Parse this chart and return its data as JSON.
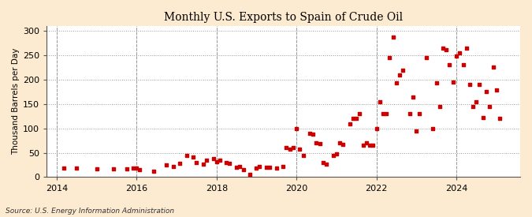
{
  "title": "Monthly U.S. Exports to Spain of Crude Oil",
  "ylabel": "Thousand Barrels per Day",
  "source": "Source: U.S. Energy Information Administration",
  "outer_bg": "#fcebd0",
  "plot_bg": "#ffffff",
  "dot_color": "#cc0000",
  "ylim": [
    0,
    310
  ],
  "yticks": [
    0,
    50,
    100,
    150,
    200,
    250,
    300
  ],
  "xlim": [
    2013.75,
    2025.6
  ],
  "xticks": [
    2014,
    2016,
    2018,
    2020,
    2022,
    2024
  ],
  "data": [
    [
      2014.17,
      18
    ],
    [
      2014.5,
      18
    ],
    [
      2015.0,
      17
    ],
    [
      2015.42,
      17
    ],
    [
      2015.75,
      17
    ],
    [
      2015.92,
      18
    ],
    [
      2016.0,
      19
    ],
    [
      2016.08,
      15
    ],
    [
      2016.42,
      12
    ],
    [
      2016.75,
      25
    ],
    [
      2016.92,
      22
    ],
    [
      2017.08,
      28
    ],
    [
      2017.25,
      44
    ],
    [
      2017.42,
      42
    ],
    [
      2017.5,
      30
    ],
    [
      2017.67,
      27
    ],
    [
      2017.75,
      35
    ],
    [
      2017.92,
      38
    ],
    [
      2018.0,
      32
    ],
    [
      2018.08,
      35
    ],
    [
      2018.25,
      30
    ],
    [
      2018.33,
      28
    ],
    [
      2018.5,
      20
    ],
    [
      2018.58,
      22
    ],
    [
      2018.67,
      15
    ],
    [
      2018.83,
      6
    ],
    [
      2019.0,
      18
    ],
    [
      2019.08,
      22
    ],
    [
      2019.25,
      20
    ],
    [
      2019.33,
      20
    ],
    [
      2019.5,
      18
    ],
    [
      2019.67,
      22
    ],
    [
      2019.75,
      60
    ],
    [
      2019.83,
      57
    ],
    [
      2019.92,
      60
    ],
    [
      2020.0,
      100
    ],
    [
      2020.08,
      57
    ],
    [
      2020.17,
      45
    ],
    [
      2020.33,
      90
    ],
    [
      2020.42,
      88
    ],
    [
      2020.5,
      70
    ],
    [
      2020.58,
      68
    ],
    [
      2020.67,
      30
    ],
    [
      2020.75,
      27
    ],
    [
      2020.92,
      45
    ],
    [
      2021.0,
      47
    ],
    [
      2021.08,
      70
    ],
    [
      2021.17,
      67
    ],
    [
      2021.33,
      110
    ],
    [
      2021.42,
      120
    ],
    [
      2021.5,
      120
    ],
    [
      2021.58,
      130
    ],
    [
      2021.67,
      65
    ],
    [
      2021.75,
      70
    ],
    [
      2021.83,
      65
    ],
    [
      2021.92,
      65
    ],
    [
      2022.0,
      100
    ],
    [
      2022.08,
      155
    ],
    [
      2022.17,
      130
    ],
    [
      2022.25,
      130
    ],
    [
      2022.33,
      245
    ],
    [
      2022.42,
      287
    ],
    [
      2022.5,
      193
    ],
    [
      2022.58,
      210
    ],
    [
      2022.67,
      220
    ],
    [
      2022.83,
      130
    ],
    [
      2022.92,
      165
    ],
    [
      2023.0,
      95
    ],
    [
      2023.08,
      130
    ],
    [
      2023.25,
      245
    ],
    [
      2023.42,
      100
    ],
    [
      2023.5,
      193
    ],
    [
      2023.58,
      145
    ],
    [
      2023.67,
      265
    ],
    [
      2023.75,
      262
    ],
    [
      2023.83,
      230
    ],
    [
      2023.92,
      195
    ],
    [
      2024.0,
      248
    ],
    [
      2024.08,
      255
    ],
    [
      2024.17,
      230
    ],
    [
      2024.25,
      265
    ],
    [
      2024.33,
      190
    ],
    [
      2024.42,
      145
    ],
    [
      2024.5,
      155
    ],
    [
      2024.58,
      190
    ],
    [
      2024.67,
      122
    ],
    [
      2024.75,
      175
    ],
    [
      2024.83,
      145
    ],
    [
      2024.92,
      225
    ],
    [
      2025.0,
      179
    ],
    [
      2025.08,
      121
    ]
  ]
}
